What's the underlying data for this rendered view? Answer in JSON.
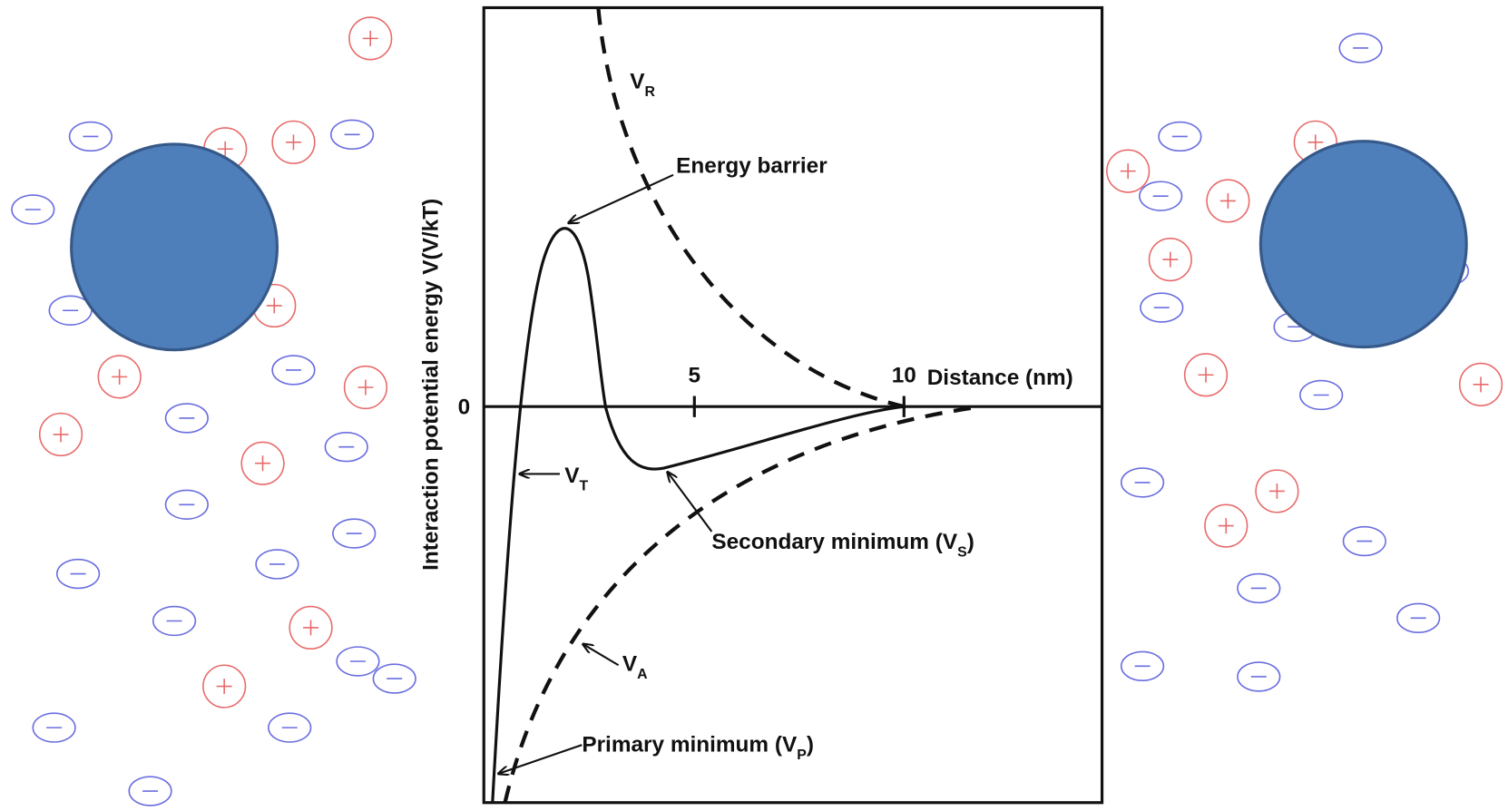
{
  "axis": {
    "y_label": "Interaction potential energy V(V/kT)",
    "x_label": "Distance (nm)",
    "zero": "0",
    "tick_5": "5",
    "tick_10": "10"
  },
  "labels": {
    "v_r": [
      "V",
      "R"
    ],
    "v_t": [
      "V",
      "T"
    ],
    "v_a": [
      "V",
      "A"
    ],
    "energy_barrier": "Energy barrier",
    "secondary_minimum": [
      "Secondary minimum (V",
      "S",
      ")"
    ],
    "primary_minimum": [
      "Primary minimum (V",
      "P",
      ")"
    ]
  }
}
